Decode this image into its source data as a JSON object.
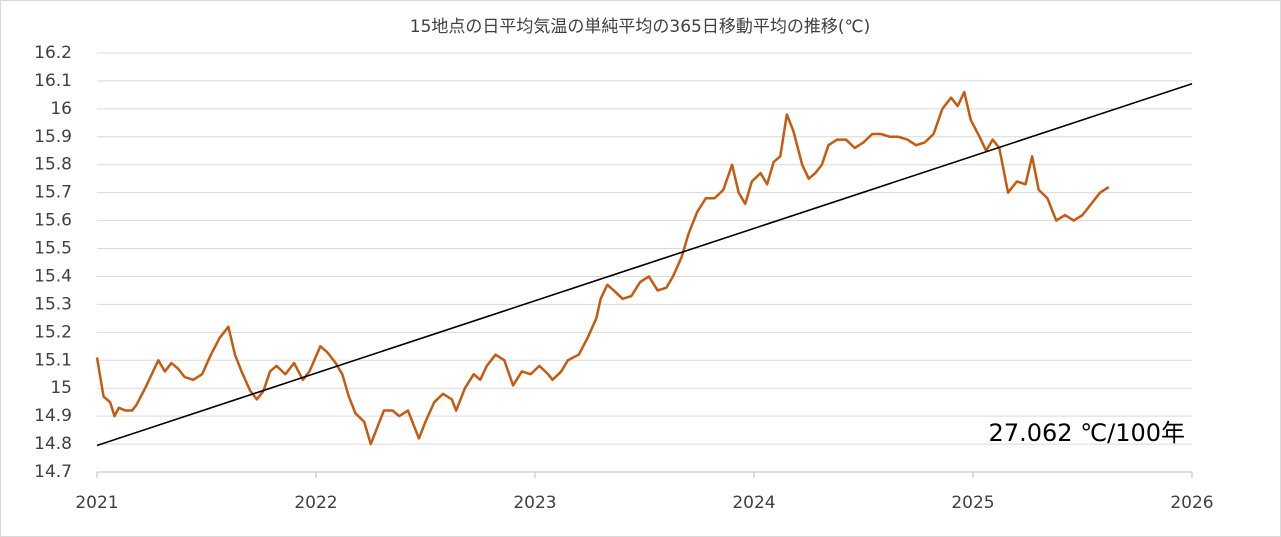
{
  "chart_data": {
    "type": "line",
    "title": "15地点の日平均気温の単純平均の365日移動平均の推移(℃)",
    "annotation": "27.062 ℃/100年",
    "xlim": [
      2021,
      2026
    ],
    "xticks": [
      2021,
      2022,
      2023,
      2024,
      2025,
      2026
    ],
    "ylim": [
      14.7,
      16.2
    ],
    "yticks": [
      14.7,
      14.8,
      14.9,
      15,
      15.1,
      15.2,
      15.3,
      15.4,
      15.5,
      15.6,
      15.7,
      15.8,
      15.9,
      16,
      16.1,
      16.2
    ],
    "grid": true,
    "series": [
      {
        "color": "#c55a11",
        "x": [
          2021.0,
          2021.03,
          2021.06,
          2021.08,
          2021.1,
          2021.13,
          2021.16,
          2021.18,
          2021.22,
          2021.25,
          2021.28,
          2021.31,
          2021.34,
          2021.37,
          2021.4,
          2021.44,
          2021.48,
          2021.52,
          2021.56,
          2021.6,
          2021.63,
          2021.66,
          2021.7,
          2021.73,
          2021.76,
          2021.79,
          2021.82,
          2021.86,
          2021.9,
          2021.94,
          2021.97,
          2022.02,
          2022.05,
          2022.09,
          2022.12,
          2022.15,
          2022.18,
          2022.22,
          2022.25,
          2022.28,
          2022.31,
          2022.35,
          2022.38,
          2022.42,
          2022.45,
          2022.47,
          2022.5,
          2022.54,
          2022.58,
          2022.62,
          2022.64,
          2022.68,
          2022.72,
          2022.75,
          2022.78,
          2022.82,
          2022.86,
          2022.9,
          2022.94,
          2022.98,
          2023.02,
          2023.06,
          2023.08,
          2023.12,
          2023.15,
          2023.2,
          2023.24,
          2023.28,
          2023.3,
          2023.33,
          2023.36,
          2023.4,
          2023.44,
          2023.48,
          2023.52,
          2023.56,
          2023.6,
          2023.63,
          2023.67,
          2023.7,
          2023.74,
          2023.78,
          2023.82,
          2023.86,
          2023.9,
          2023.93,
          2023.96,
          2023.99,
          2024.03,
          2024.06,
          2024.09,
          2024.12,
          2024.15,
          2024.18,
          2024.22,
          2024.25,
          2024.28,
          2024.31,
          2024.34,
          2024.38,
          2024.42,
          2024.46,
          2024.5,
          2024.54,
          2024.58,
          2024.62,
          2024.66,
          2024.7,
          2024.74,
          2024.78,
          2024.82,
          2024.86,
          2024.9,
          2024.93,
          2024.96,
          2024.99,
          2025.03,
          2025.06,
          2025.09,
          2025.12,
          2025.14,
          2025.16,
          2025.2,
          2025.24,
          2025.27,
          2025.3,
          2025.34,
          2025.38,
          2025.42,
          2025.46,
          2025.5,
          2025.54,
          2025.58,
          2025.62
        ],
        "values": [
          15.11,
          14.97,
          14.95,
          14.9,
          14.93,
          14.92,
          14.92,
          14.94,
          15.0,
          15.05,
          15.1,
          15.06,
          15.09,
          15.07,
          15.04,
          15.03,
          15.05,
          15.12,
          15.18,
          15.22,
          15.12,
          15.06,
          14.99,
          14.96,
          14.99,
          15.06,
          15.08,
          15.05,
          15.09,
          15.03,
          15.06,
          15.15,
          15.13,
          15.09,
          15.05,
          14.97,
          14.91,
          14.88,
          14.8,
          14.86,
          14.92,
          14.92,
          14.9,
          14.92,
          14.86,
          14.82,
          14.88,
          14.95,
          14.98,
          14.96,
          14.92,
          15.0,
          15.05,
          15.03,
          15.08,
          15.12,
          15.1,
          15.01,
          15.06,
          15.05,
          15.08,
          15.05,
          15.03,
          15.06,
          15.1,
          15.12,
          15.18,
          15.25,
          15.32,
          15.37,
          15.35,
          15.32,
          15.33,
          15.38,
          15.4,
          15.35,
          15.36,
          15.4,
          15.47,
          15.55,
          15.63,
          15.68,
          15.68,
          15.71,
          15.8,
          15.7,
          15.66,
          15.74,
          15.77,
          15.73,
          15.81,
          15.83,
          15.98,
          15.92,
          15.8,
          15.75,
          15.77,
          15.8,
          15.87,
          15.89,
          15.89,
          15.86,
          15.88,
          15.91,
          15.91,
          15.9,
          15.9,
          15.89,
          15.87,
          15.88,
          15.91,
          16.0,
          16.04,
          16.01,
          16.06,
          15.96,
          15.9,
          15.85,
          15.89,
          15.86,
          15.78,
          15.7,
          15.74,
          15.73,
          15.83,
          15.71,
          15.68,
          15.6,
          15.62,
          15.6,
          15.62,
          15.66,
          15.7,
          15.72
        ]
      },
      {
        "color": "#000000",
        "x": [
          2021,
          2026
        ],
        "values": [
          14.795,
          16.09
        ]
      }
    ]
  }
}
